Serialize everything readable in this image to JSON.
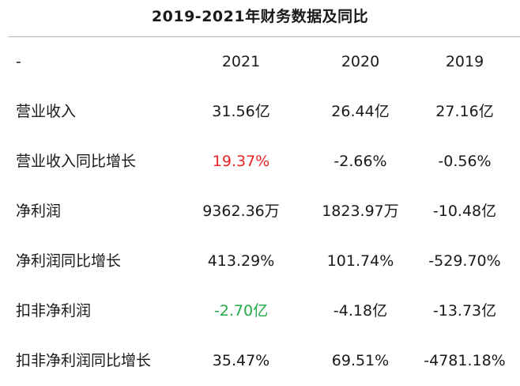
{
  "title": "2019-2021年财务数据及同比",
  "header": {
    "label": "-",
    "years": [
      "2021",
      "2020",
      "2019"
    ]
  },
  "rows": [
    {
      "label": "营业收入",
      "values": [
        "31.56亿",
        "26.44亿",
        "27.16亿"
      ]
    },
    {
      "label": "营业收入同比增长",
      "values": [
        "19.37%",
        "-2.66%",
        "-0.56%"
      ]
    },
    {
      "label": "净利润",
      "values": [
        "9362.36万",
        "1823.97万",
        "-10.48亿"
      ]
    },
    {
      "label": "净利润同比增长",
      "values": [
        "413.29%",
        "101.74%",
        "-529.70%"
      ]
    },
    {
      "label": "扣非净利润",
      "values": [
        "-2.70亿",
        "-4.18亿",
        "-13.73亿"
      ]
    },
    {
      "label": "扣非净利润同比增长",
      "values": [
        "35.47%",
        "69.51%",
        "-4781.18%"
      ]
    }
  ],
  "colors": {
    "positive_highlight": "#ee2222",
    "negative_highlight": "#22aa44"
  }
}
